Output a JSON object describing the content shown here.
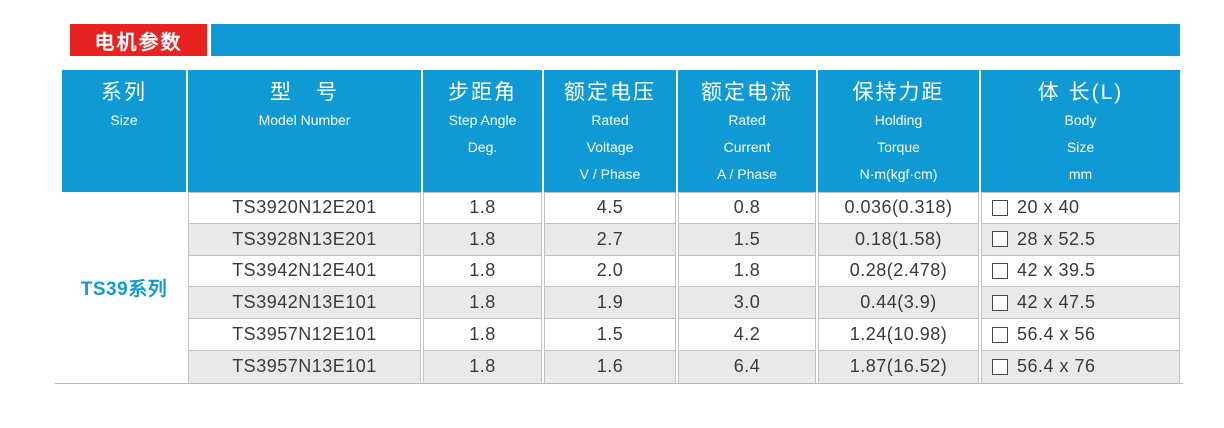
{
  "tab": {
    "label": "电机参数"
  },
  "table": {
    "series_label": "TS39系列",
    "columns": [
      {
        "key": "series",
        "zh": "系列",
        "en": [
          "Size"
        ]
      },
      {
        "key": "model-number",
        "zh": "型　号",
        "en": [
          "Model Number"
        ]
      },
      {
        "key": "step-angle",
        "zh": "步距角",
        "en": [
          "Step Angle",
          "",
          "Deg."
        ]
      },
      {
        "key": "rated-voltage",
        "zh": "额定电压",
        "en": [
          "Rated",
          "Voltage",
          "V / Phase"
        ]
      },
      {
        "key": "rated-current",
        "zh": "额定电流",
        "en": [
          "Rated",
          "Current",
          "A / Phase"
        ]
      },
      {
        "key": "holding-torque",
        "zh": "保持力距",
        "en": [
          "Holding",
          "Torque",
          "N·m(kgf·cm)"
        ]
      },
      {
        "key": "body-size",
        "zh": "体 长(L)",
        "en": [
          "Body",
          "Size",
          "mm"
        ]
      }
    ],
    "rows": [
      {
        "model": "TS3920N12E201",
        "step_angle": "1.8",
        "rated_voltage": "4.5",
        "rated_current": "0.8",
        "holding_torque": "0.036(0.318)",
        "body_size": "20 x 40"
      },
      {
        "model": "TS3928N13E201",
        "step_angle": "1.8",
        "rated_voltage": "2.7",
        "rated_current": "1.5",
        "holding_torque": "0.18(1.58)",
        "body_size": "28 x 52.5"
      },
      {
        "model": "TS3942N12E401",
        "step_angle": "1.8",
        "rated_voltage": "2.0",
        "rated_current": "1.8",
        "holding_torque": "0.28(2.478)",
        "body_size": "42 x 39.5"
      },
      {
        "model": "TS3942N13E101",
        "step_angle": "1.8",
        "rated_voltage": "1.9",
        "rated_current": "3.0",
        "holding_torque": "0.44(3.9)",
        "body_size": "42 x 47.5"
      },
      {
        "model": "TS3957N12E101",
        "step_angle": "1.8",
        "rated_voltage": "1.5",
        "rated_current": "4.2",
        "holding_torque": "1.24(10.98)",
        "body_size": "56.4 x 56"
      },
      {
        "model": "TS3957N13E101",
        "step_angle": "1.8",
        "rated_voltage": "1.6",
        "rated_current": "6.4",
        "holding_torque": "1.87(16.52)",
        "body_size": "56.4 x 76"
      }
    ]
  },
  "colors": {
    "accent_red": "#e62320",
    "accent_blue": "#0f9ad6",
    "row_alt": "#e9e9e9",
    "cell_border": "#c2c2c2",
    "data_text": "#3a3a3a"
  }
}
